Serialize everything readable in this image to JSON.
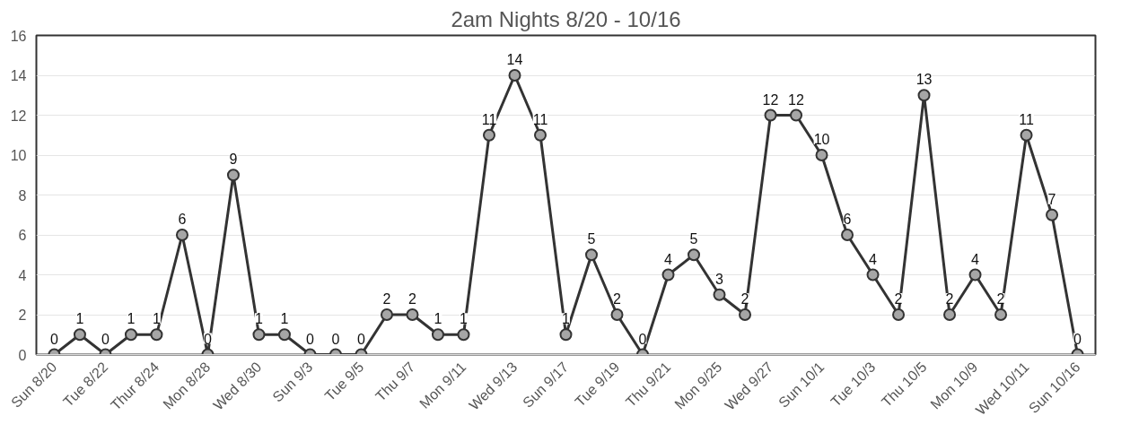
{
  "chart_data": {
    "type": "line",
    "title": "2am Nights 8/20 - 10/16",
    "categories": [
      "Sun 8/20",
      null,
      "Tue 8/22",
      null,
      "Thur 8/24",
      null,
      "Mon 8/28",
      null,
      "Wed 8/30",
      null,
      "Sun 9/3",
      null,
      "Tue 9/5",
      null,
      "Thu 9/7",
      null,
      "Mon 9/11",
      null,
      "Wed 9/13",
      null,
      "Sun 9/17",
      null,
      "Tue 9/19",
      null,
      "Thu 9/21",
      null,
      "Mon 9/25",
      null,
      "Wed 9/27",
      null,
      "Sun 10/1",
      null,
      "Tue 10/3",
      null,
      "Thu 10/5",
      null,
      "Mon 10/9",
      null,
      "Wed 10/11",
      null,
      "Sun 10/16"
    ],
    "series": [
      {
        "color": "#333333",
        "values": [
          0,
          1,
          0,
          1,
          1,
          6,
          0,
          9,
          1,
          1,
          0,
          0,
          0,
          2,
          2,
          1,
          1,
          11,
          14,
          11,
          1,
          5,
          2,
          0,
          4,
          5,
          3,
          2,
          12,
          12,
          10,
          6,
          4,
          2,
          13,
          2,
          4,
          2,
          11,
          7,
          0
        ]
      }
    ],
    "ylim": [
      0,
      16
    ],
    "yticks": [
      0,
      2,
      4,
      6,
      8,
      10,
      12,
      14,
      16
    ],
    "grid": "y",
    "marker": "circle",
    "line_style": "solid",
    "data_labels": true
  }
}
